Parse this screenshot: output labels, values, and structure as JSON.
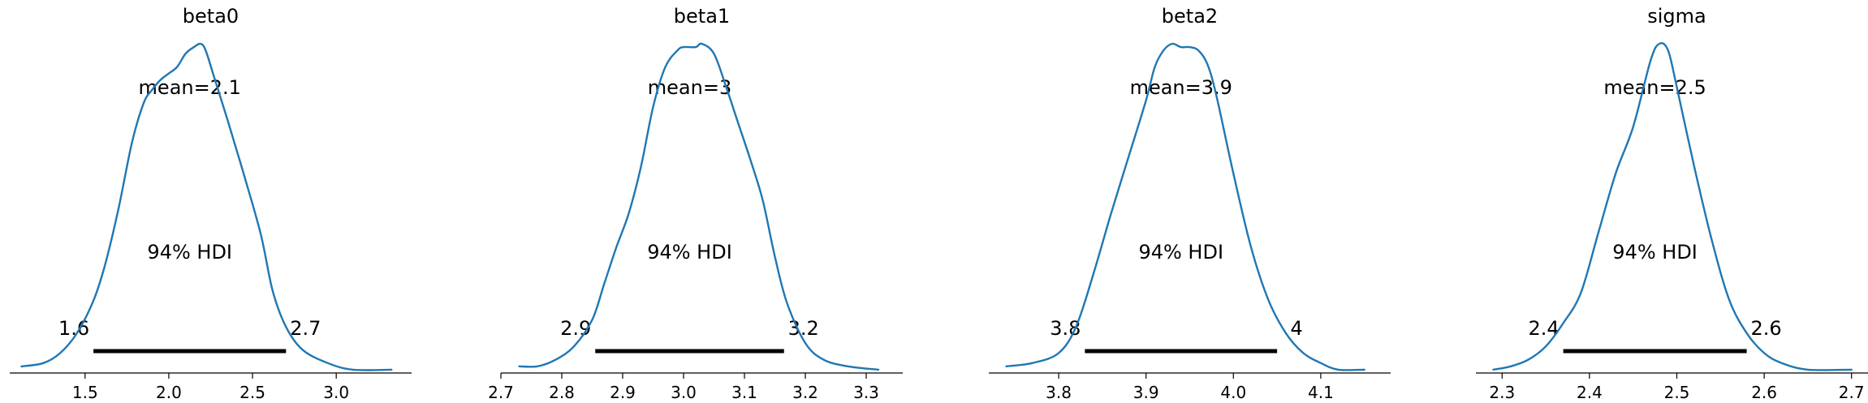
{
  "chart_data": [
    {
      "type": "area",
      "title": "beta0",
      "mean_label": "mean=2.1",
      "hdi_label": "94% HDI",
      "hdi": [
        1.55,
        2.7
      ],
      "hdi_low_label": "1.6",
      "hdi_high_label": "2.7",
      "xlim": [
        1.05,
        3.45
      ],
      "xticks": [
        1.5,
        2.0,
        2.5,
        3.0
      ],
      "xtick_labels": [
        "1.5",
        "2.0",
        "2.5",
        "3.0"
      ],
      "density": {
        "x": [
          1.12,
          1.25,
          1.35,
          1.45,
          1.55,
          1.62,
          1.7,
          1.78,
          1.85,
          1.9,
          1.95,
          2.0,
          2.05,
          2.1,
          2.15,
          2.19,
          2.22,
          2.27,
          2.35,
          2.45,
          2.55,
          2.62,
          2.7,
          2.8,
          2.95,
          3.1,
          3.33
        ],
        "y": [
          0.02,
          0.03,
          0.06,
          0.12,
          0.22,
          0.33,
          0.5,
          0.7,
          0.82,
          0.86,
          0.89,
          0.91,
          0.93,
          0.97,
          0.99,
          1.0,
          0.98,
          0.9,
          0.77,
          0.6,
          0.42,
          0.25,
          0.14,
          0.07,
          0.03,
          0.01,
          0.01
        ]
      }
    },
    {
      "type": "area",
      "title": "beta1",
      "mean_label": "mean=3",
      "hdi_label": "94% HDI",
      "hdi": [
        2.855,
        3.165
      ],
      "hdi_low_label": "2.9",
      "hdi_high_label": "3.2",
      "xlim": [
        2.7,
        3.36
      ],
      "xticks": [
        2.7,
        2.8,
        2.9,
        3.0,
        3.1,
        3.2,
        3.3
      ],
      "xtick_labels": [
        "2.7",
        "2.8",
        "2.9",
        "3.0",
        "3.1",
        "3.2",
        "3.3"
      ],
      "density": {
        "x": [
          2.73,
          2.76,
          2.79,
          2.82,
          2.85,
          2.87,
          2.89,
          2.91,
          2.93,
          2.95,
          2.97,
          2.99,
          3.0,
          3.02,
          3.03,
          3.05,
          3.07,
          3.09,
          3.11,
          3.13,
          3.15,
          3.17,
          3.2,
          3.23,
          3.27,
          3.32
        ],
        "y": [
          0.02,
          0.02,
          0.04,
          0.08,
          0.16,
          0.27,
          0.38,
          0.48,
          0.62,
          0.8,
          0.92,
          0.97,
          0.98,
          0.98,
          0.99,
          0.96,
          0.86,
          0.75,
          0.64,
          0.52,
          0.35,
          0.21,
          0.09,
          0.04,
          0.02,
          0.01
        ]
      }
    },
    {
      "type": "area",
      "title": "beta2",
      "mean_label": "mean=3.9",
      "hdi_label": "94% HDI",
      "hdi": [
        3.83,
        4.05
      ],
      "hdi_low_label": "3.8",
      "hdi_high_label": "4",
      "xlim": [
        3.72,
        4.18
      ],
      "xticks": [
        3.8,
        3.9,
        4.0,
        4.1
      ],
      "xtick_labels": [
        "3.8",
        "3.9",
        "4.0",
        "4.1"
      ],
      "density": {
        "x": [
          3.74,
          3.77,
          3.8,
          3.82,
          3.84,
          3.86,
          3.88,
          3.9,
          3.91,
          3.92,
          3.93,
          3.94,
          3.95,
          3.96,
          3.97,
          3.98,
          4.0,
          4.02,
          4.04,
          4.06,
          4.08,
          4.1,
          4.12,
          4.15
        ],
        "y": [
          0.02,
          0.03,
          0.06,
          0.14,
          0.3,
          0.48,
          0.65,
          0.82,
          0.92,
          0.97,
          0.99,
          0.98,
          0.98,
          0.97,
          0.93,
          0.84,
          0.6,
          0.38,
          0.22,
          0.12,
          0.06,
          0.03,
          0.01,
          0.01
        ]
      }
    },
    {
      "type": "area",
      "title": "sigma",
      "mean_label": "mean=2.5",
      "hdi_label": "94% HDI",
      "hdi": [
        2.37,
        2.58
      ],
      "hdi_low_label": "2.4",
      "hdi_high_label": "2.6",
      "xlim": [
        2.27,
        2.73
      ],
      "xticks": [
        2.3,
        2.4,
        2.5,
        2.6,
        2.7
      ],
      "xtick_labels": [
        "2.3",
        "2.4",
        "2.5",
        "2.6",
        "2.7"
      ],
      "density": {
        "x": [
          2.29,
          2.31,
          2.33,
          2.35,
          2.37,
          2.39,
          2.41,
          2.43,
          2.45,
          2.47,
          2.48,
          2.49,
          2.5,
          2.52,
          2.54,
          2.56,
          2.58,
          2.6,
          2.62,
          2.65,
          2.7
        ],
        "y": [
          0.01,
          0.02,
          0.04,
          0.08,
          0.15,
          0.24,
          0.42,
          0.6,
          0.74,
          0.94,
          0.99,
          0.97,
          0.86,
          0.62,
          0.4,
          0.22,
          0.12,
          0.06,
          0.03,
          0.01,
          0.01
        ]
      }
    }
  ],
  "colors": {
    "line": "#1f77b4",
    "hdi": "#000000",
    "axis": "#000000",
    "background": "#ffffff"
  }
}
